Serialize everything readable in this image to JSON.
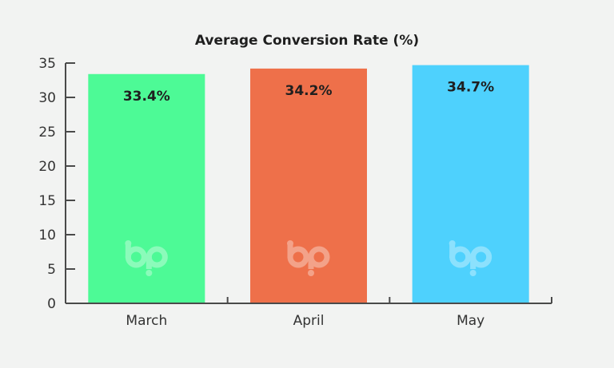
{
  "chart_data": {
    "type": "bar",
    "title": "Average Conversion Rate (%)",
    "xlabel": "",
    "ylabel": "",
    "categories": [
      "March",
      "April",
      "May"
    ],
    "values": [
      33.4,
      34.2,
      34.7
    ],
    "data_labels": [
      "33.4%",
      "34.2%",
      "34.7%"
    ],
    "colors": [
      "#4dfa96",
      "#ee704a",
      "#4ed1fd"
    ],
    "ylim": [
      0,
      35
    ],
    "yticks": [
      0,
      5,
      10,
      15,
      20,
      25,
      30,
      35
    ],
    "ytick_labels": [
      "0",
      "5",
      "10",
      "15",
      "20",
      "25",
      "30",
      "35"
    ],
    "grid": false,
    "legend": "none",
    "watermark_icon": "bp-logo-icon"
  }
}
